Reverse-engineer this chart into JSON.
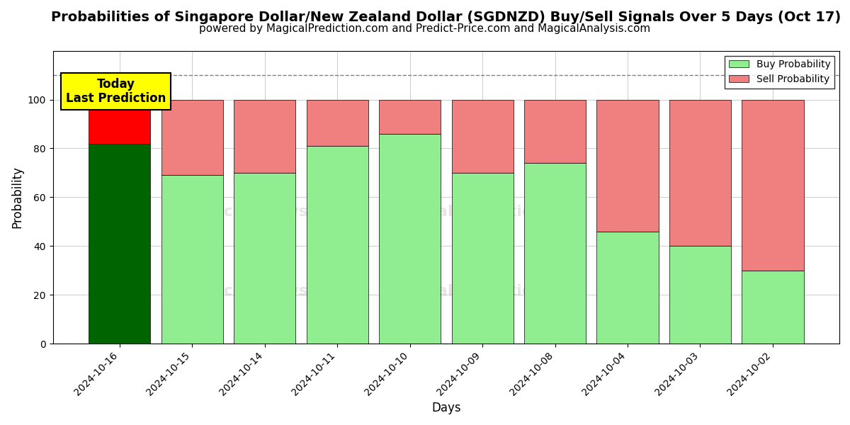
{
  "title": "Probabilities of Singapore Dollar/New Zealand Dollar (SGDNZD) Buy/Sell Signals Over 5 Days (Oct 17)",
  "subtitle": "powered by MagicalPrediction.com and Predict-Price.com and MagicalAnalysis.com",
  "xlabel": "Days",
  "ylabel": "Probability",
  "dates": [
    "2024-10-16",
    "2024-10-15",
    "2024-10-14",
    "2024-10-11",
    "2024-10-10",
    "2024-10-09",
    "2024-10-08",
    "2024-10-04",
    "2024-10-03",
    "2024-10-02"
  ],
  "buy_values": [
    82,
    69,
    70,
    81,
    86,
    70,
    74,
    46,
    40,
    30
  ],
  "sell_values": [
    18,
    31,
    30,
    19,
    14,
    30,
    26,
    54,
    60,
    70
  ],
  "today_buy_color": "#006400",
  "today_sell_color": "#FF0000",
  "buy_color": "#90EE90",
  "sell_color": "#F08080",
  "today_label_bg": "#FFFF00",
  "today_label_text": "Today\nLast Prediction",
  "ylim": [
    0,
    120
  ],
  "yticks": [
    0,
    20,
    40,
    60,
    80,
    100
  ],
  "dashed_line_y": 110,
  "bar_width": 0.85,
  "legend_buy_label": "Buy Probability",
  "legend_sell_label": "Sell Probability",
  "grid_color": "#CCCCCC",
  "bg_color": "#FFFFFF",
  "title_fontsize": 14,
  "subtitle_fontsize": 11,
  "label_fontsize": 12
}
